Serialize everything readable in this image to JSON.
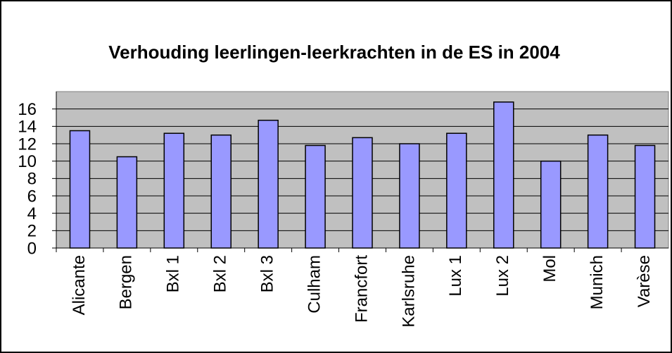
{
  "chart_data": {
    "type": "bar",
    "title": "Verhouding leerlingen-leerkrachten in de ES in 2004",
    "categories": [
      "Alicante",
      "Bergen",
      "Bxl 1",
      "Bxl 2",
      "Bxl 3",
      "Culham",
      "Francfort",
      "Karlsruhe",
      "Lux 1",
      "Lux 2",
      "Mol",
      "Munich",
      "Varèse"
    ],
    "values": [
      13.5,
      10.5,
      13.2,
      13.0,
      14.7,
      11.8,
      12.7,
      12.0,
      13.2,
      16.8,
      10.0,
      13.0,
      11.8
    ],
    "color": "#9999ff",
    "ylim": [
      0,
      18
    ],
    "yticks": [
      0,
      2,
      4,
      6,
      8,
      10,
      12,
      14,
      16
    ],
    "grid": true
  }
}
